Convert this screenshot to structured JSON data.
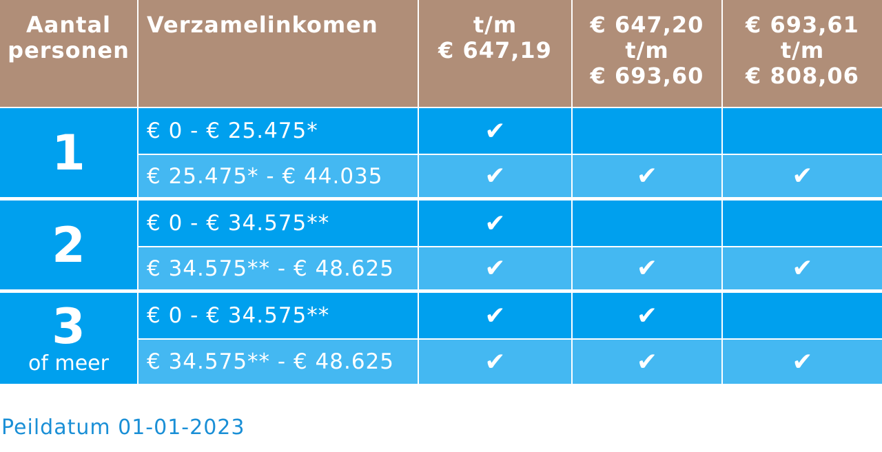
{
  "header": {
    "persons": [
      "Aantal",
      "personen"
    ],
    "income": "Verzamelinkomen",
    "rent_columns": [
      [
        "t/m",
        "€ 647,19"
      ],
      [
        "€ 647,20",
        "t/m",
        "€ 693,60"
      ],
      [
        "€ 693,61",
        "t/m",
        "€ 808,06"
      ]
    ]
  },
  "check_symbol": "✔",
  "groups": [
    {
      "persons": "1",
      "subtitle": "",
      "rows": [
        {
          "income": "€ 0 - € 25.475*",
          "checks": [
            true,
            false,
            false
          ]
        },
        {
          "income": "€ 25.475* - € 44.035",
          "checks": [
            true,
            true,
            true
          ]
        }
      ]
    },
    {
      "persons": "2",
      "subtitle": "",
      "rows": [
        {
          "income": "€ 0 - € 34.575**",
          "checks": [
            true,
            false,
            false
          ]
        },
        {
          "income": "€ 34.575** - € 48.625",
          "checks": [
            true,
            true,
            true
          ]
        }
      ]
    },
    {
      "persons": "3",
      "subtitle": "of meer",
      "rows": [
        {
          "income": "€ 0 - € 34.575**",
          "checks": [
            true,
            true,
            false
          ]
        },
        {
          "income": "€ 34.575** - € 48.625",
          "checks": [
            true,
            true,
            true
          ]
        }
      ]
    }
  ],
  "footnote": "Peildatum 01-01-2023",
  "colors": {
    "header_bg": "#b08e78",
    "row_dark": "#00a0ee",
    "row_light": "#44b8f2",
    "footnote_text": "#1a8fd6"
  }
}
